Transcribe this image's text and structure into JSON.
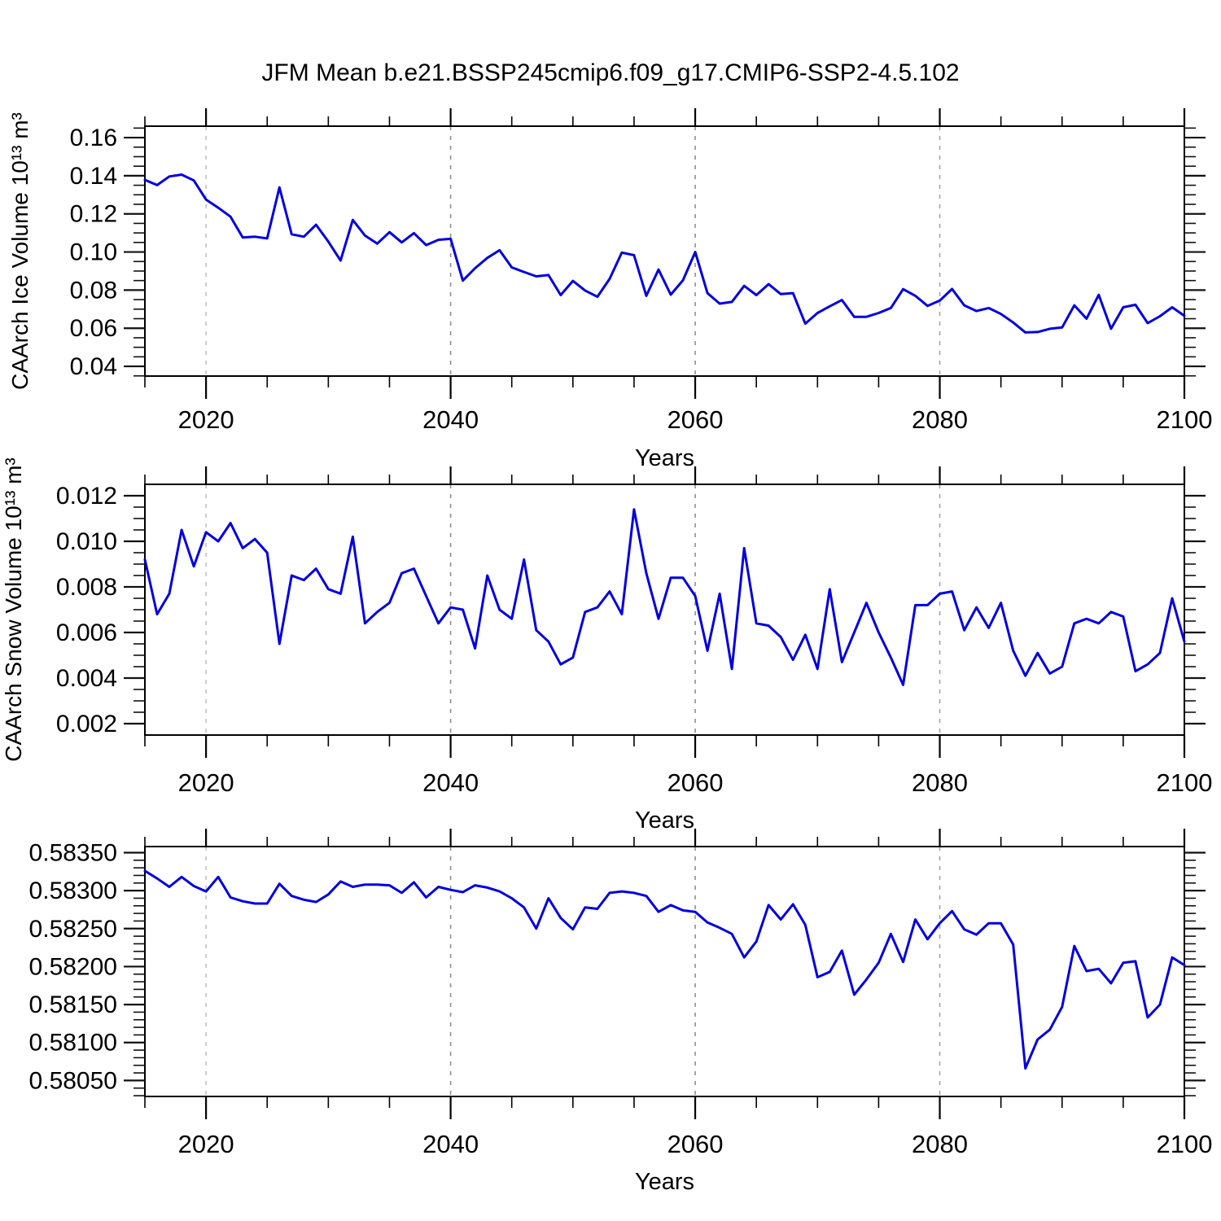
{
  "title": "JFM Mean b.e21.BSSP245cmip6.f09_g17.CMIP6-SSP2-4.5.102",
  "xlabel": "Years",
  "line_color": "#0000e0",
  "frame_color": "#000000",
  "gridline_years": [
    2020,
    2040,
    2060,
    2080
  ],
  "gridline_colors": [
    "#c2c2c2",
    "#8f8f8f",
    "#8f8f8f",
    "#a5a5a5"
  ],
  "xticks": [
    2020,
    2040,
    2060,
    2080,
    2100
  ],
  "xtick_labels": [
    "2020",
    "2040",
    "2060",
    "2080",
    "2100"
  ],
  "xminors": [
    2015,
    2025,
    2030,
    2035,
    2045,
    2050,
    2055,
    2065,
    2070,
    2075,
    2085,
    2090,
    2095
  ],
  "xlim": [
    2015,
    2100
  ],
  "years": [
    2015,
    2016,
    2017,
    2018,
    2019,
    2020,
    2021,
    2022,
    2023,
    2024,
    2025,
    2026,
    2027,
    2028,
    2029,
    2030,
    2031,
    2032,
    2033,
    2034,
    2035,
    2036,
    2037,
    2038,
    2039,
    2040,
    2041,
    2042,
    2043,
    2044,
    2045,
    2046,
    2047,
    2048,
    2049,
    2050,
    2051,
    2052,
    2053,
    2054,
    2055,
    2056,
    2057,
    2058,
    2059,
    2060,
    2061,
    2062,
    2063,
    2064,
    2065,
    2066,
    2067,
    2068,
    2069,
    2070,
    2071,
    2072,
    2073,
    2074,
    2075,
    2076,
    2077,
    2078,
    2079,
    2080,
    2081,
    2082,
    2083,
    2084,
    2085,
    2086,
    2087,
    2088,
    2089,
    2090,
    2091,
    2092,
    2093,
    2094,
    2095,
    2096,
    2097,
    2098,
    2099,
    2100
  ],
  "chart_data": [
    {
      "type": "line",
      "id": "ice-volume",
      "ylabel": "CAArch Ice Volume 10¹³ m³",
      "ylim": [
        0.0349,
        0.166
      ],
      "ymajor": [
        0.16,
        0.14,
        0.12,
        0.1,
        0.08,
        0.06,
        0.04
      ],
      "ytick_labels": [
        "0.16",
        "0.14",
        "0.12",
        "0.10",
        "0.08",
        "0.06",
        "0.04"
      ],
      "yminor_step": 0.005,
      "values": [
        0.1378,
        0.1351,
        0.1396,
        0.1406,
        0.1375,
        0.1275,
        0.1232,
        0.1185,
        0.1076,
        0.108,
        0.1071,
        0.1339,
        0.1093,
        0.108,
        0.1143,
        0.1054,
        0.0955,
        0.1168,
        0.1086,
        0.1044,
        0.1104,
        0.105,
        0.1099,
        0.1036,
        0.1064,
        0.1069,
        0.085,
        0.0915,
        0.0969,
        0.1009,
        0.0919,
        0.0895,
        0.0872,
        0.0879,
        0.0774,
        0.0848,
        0.0798,
        0.0765,
        0.0859,
        0.0997,
        0.0983,
        0.077,
        0.0908,
        0.0776,
        0.0851,
        0.1,
        0.0784,
        0.0729,
        0.0738,
        0.0822,
        0.0774,
        0.0831,
        0.0779,
        0.0784,
        0.0624,
        0.068,
        0.0715,
        0.0748,
        0.066,
        0.066,
        0.068,
        0.0706,
        0.0805,
        0.077,
        0.0717,
        0.0745,
        0.0806,
        0.072,
        0.069,
        0.0706,
        0.0675,
        0.063,
        0.0578,
        0.058,
        0.0597,
        0.0604,
        0.072,
        0.065,
        0.0775,
        0.0597,
        0.071,
        0.0723,
        0.0627,
        0.0663,
        0.071,
        0.0665
      ]
    },
    {
      "type": "line",
      "id": "snow-volume",
      "ylabel": "CAArch Snow Volume 10¹³ m³",
      "ylim": [
        0.0015,
        0.0125
      ],
      "ymajor": [
        0.012,
        0.01,
        0.008,
        0.006,
        0.004,
        0.002
      ],
      "ytick_labels": [
        "0.012",
        "0.010",
        "0.008",
        "0.006",
        "0.004",
        "0.002"
      ],
      "yminor_step": 0.0005,
      "values": [
        0.0092,
        0.0068,
        0.0077,
        0.0105,
        0.0089,
        0.0104,
        0.01,
        0.0108,
        0.0097,
        0.0101,
        0.0095,
        0.0055,
        0.0085,
        0.0083,
        0.0088,
        0.0079,
        0.0077,
        0.0102,
        0.0064,
        0.0069,
        0.0073,
        0.0086,
        0.0088,
        0.0076,
        0.0064,
        0.0071,
        0.007,
        0.0053,
        0.0085,
        0.007,
        0.0066,
        0.0092,
        0.0061,
        0.0056,
        0.0046,
        0.0049,
        0.0069,
        0.0071,
        0.0078,
        0.0068,
        0.0114,
        0.0086,
        0.0066,
        0.0084,
        0.0084,
        0.0076,
        0.0052,
        0.0077,
        0.0044,
        0.0097,
        0.0064,
        0.0063,
        0.0058,
        0.0048,
        0.0059,
        0.0044,
        0.0079,
        0.0047,
        0.006,
        0.0073,
        0.006,
        0.0049,
        0.0037,
        0.0072,
        0.0072,
        0.0077,
        0.0078,
        0.0061,
        0.0071,
        0.0062,
        0.0073,
        0.0052,
        0.0041,
        0.0051,
        0.0042,
        0.0045,
        0.0064,
        0.0066,
        0.0064,
        0.0069,
        0.0067,
        0.0043,
        0.0046,
        0.0051,
        0.0075,
        0.0056
      ]
    },
    {
      "type": "line",
      "id": "unlabeled-fraction",
      "ylabel": "",
      "ylim": [
        0.58029,
        0.58358
      ],
      "ymajor": [
        0.5835,
        0.583,
        0.5825,
        0.582,
        0.5815,
        0.581,
        0.5805
      ],
      "ytick_labels": [
        "0.58350",
        "0.58300",
        "0.58250",
        "0.58200",
        "0.58150",
        "0.58100",
        "0.58050"
      ],
      "yminor_step": 0.0001,
      "values": [
        0.58326,
        0.58316,
        0.58305,
        0.58318,
        0.58306,
        0.58299,
        0.58318,
        0.58291,
        0.58286,
        0.58283,
        0.58283,
        0.58309,
        0.58293,
        0.58288,
        0.58285,
        0.58295,
        0.58312,
        0.58305,
        0.58308,
        0.58308,
        0.58307,
        0.58297,
        0.58311,
        0.58291,
        0.58305,
        0.58301,
        0.58298,
        0.58307,
        0.58304,
        0.58299,
        0.5829,
        0.58278,
        0.5825,
        0.5829,
        0.58264,
        0.58249,
        0.58278,
        0.58276,
        0.58297,
        0.58299,
        0.58297,
        0.58293,
        0.58272,
        0.58281,
        0.58274,
        0.58272,
        0.58258,
        0.58251,
        0.58243,
        0.58212,
        0.58233,
        0.58281,
        0.58262,
        0.58282,
        0.58255,
        0.58186,
        0.58193,
        0.58221,
        0.58163,
        0.58183,
        0.58205,
        0.58243,
        0.58206,
        0.58262,
        0.58236,
        0.58257,
        0.58273,
        0.58249,
        0.58242,
        0.58257,
        0.58257,
        0.58229,
        0.58066,
        0.58104,
        0.58117,
        0.58147,
        0.58227,
        0.58194,
        0.58197,
        0.58178,
        0.58205,
        0.58207,
        0.58133,
        0.5815,
        0.58212,
        0.58202
      ]
    }
  ]
}
